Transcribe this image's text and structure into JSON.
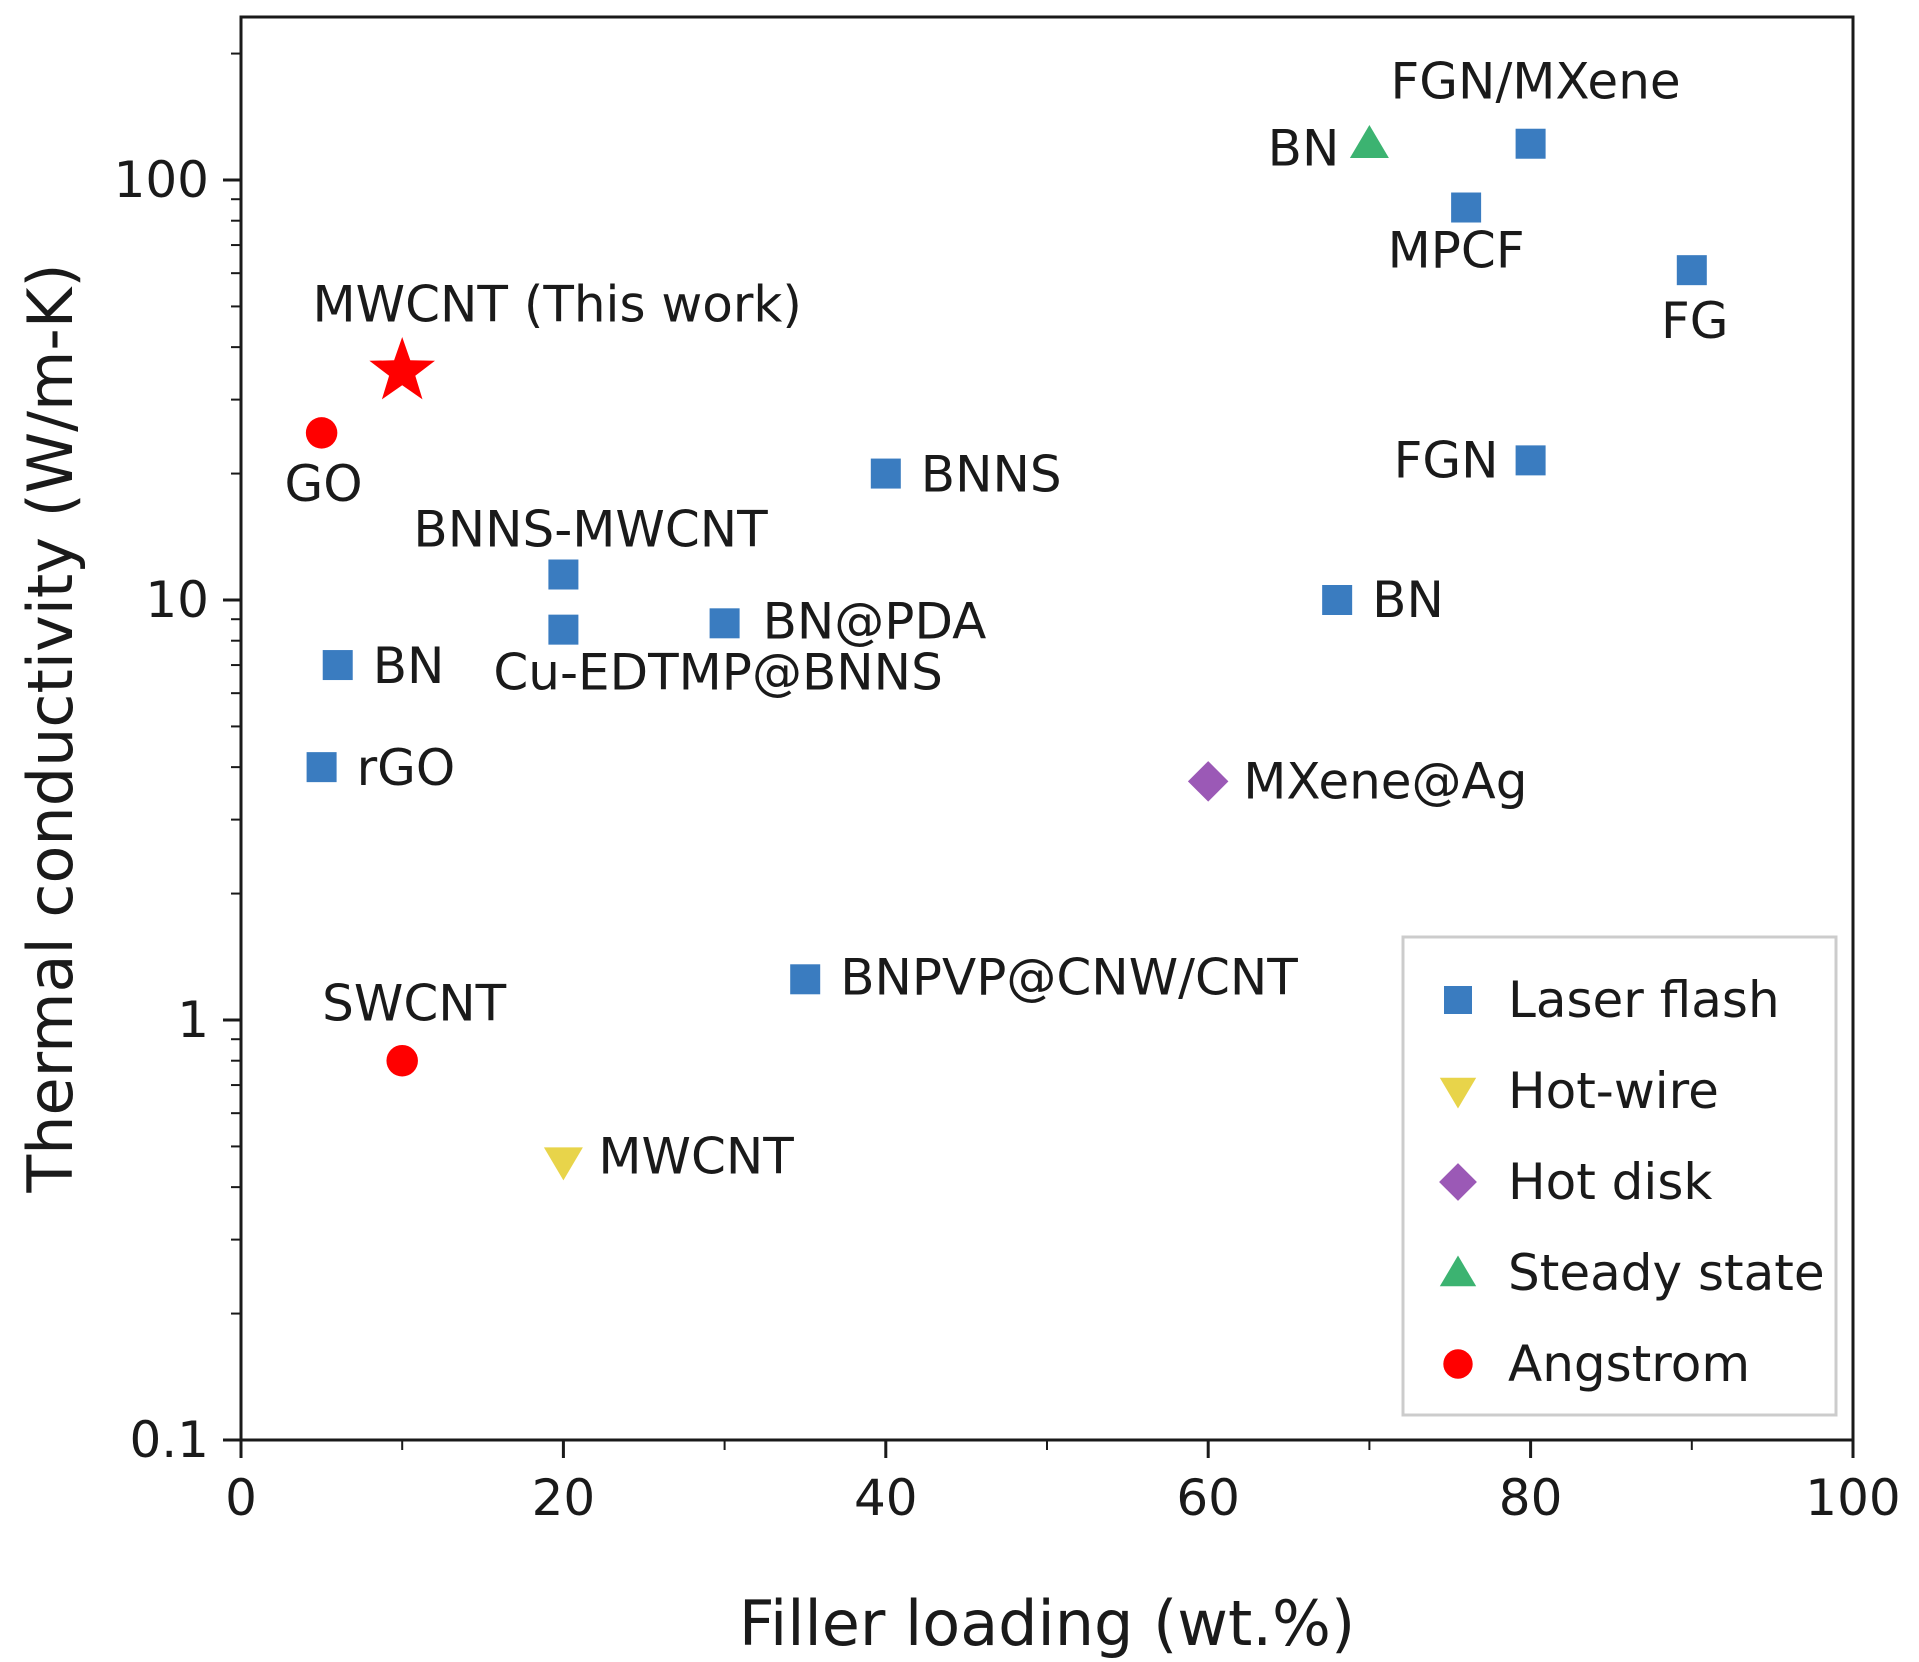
{
  "chart_data": {
    "type": "scatter",
    "title": "",
    "xlabel": "Filler loading (wt.%)",
    "ylabel": "Thermal conductivity (W/m-K)",
    "xlim": [
      0,
      100
    ],
    "ylim": [
      0.1,
      250
    ],
    "yscale": "log",
    "xticks": [
      0,
      20,
      40,
      60,
      80,
      100
    ],
    "xtick_labels": [
      "0",
      "20",
      "40",
      "60",
      "80",
      "100"
    ],
    "yticks": [
      0.1,
      1,
      10,
      100
    ],
    "ytick_labels": [
      "0.1",
      "1",
      "10",
      "100"
    ],
    "grid": false,
    "legend_position": "bottom-right",
    "series": [
      {
        "name": "Laser flash",
        "marker": "square",
        "color": "#3A7CC0",
        "points": [
          {
            "x": 6,
            "y": 7,
            "label": "BN"
          },
          {
            "x": 5,
            "y": 4,
            "label": "rGO"
          },
          {
            "x": 20,
            "y": 11.5,
            "label": "BNNS-MWCNT"
          },
          {
            "x": 20,
            "y": 8.5,
            "label": "Cu-EDTMP@BNNS"
          },
          {
            "x": 30,
            "y": 8.8,
            "label": "BN@PDA"
          },
          {
            "x": 40,
            "y": 20,
            "label": "BNNS"
          },
          {
            "x": 35,
            "y": 1.25,
            "label": "BNPVP@CNW/CNT"
          },
          {
            "x": 68,
            "y": 10,
            "label": "BN"
          },
          {
            "x": 80,
            "y": 21.5,
            "label": "FGN"
          },
          {
            "x": 76,
            "y": 86,
            "label": "MPCF"
          },
          {
            "x": 80,
            "y": 122,
            "label": "FGN/MXene"
          },
          {
            "x": 90,
            "y": 61,
            "label": "FG"
          }
        ]
      },
      {
        "name": "Hot-wire",
        "marker": "triangle-down",
        "color": "#E8D44A",
        "points": [
          {
            "x": 20,
            "y": 0.46,
            "label": "MWCNT"
          }
        ]
      },
      {
        "name": "Hot disk",
        "marker": "diamond",
        "color": "#9B59B6",
        "points": [
          {
            "x": 60,
            "y": 3.7,
            "label": "MXene@Ag"
          }
        ]
      },
      {
        "name": "Steady state",
        "marker": "triangle-up",
        "color": "#3CB371",
        "points": [
          {
            "x": 70,
            "y": 122,
            "label": "BN"
          }
        ]
      },
      {
        "name": "Angstrom",
        "marker": "circle",
        "color": "#FF0000",
        "points": [
          {
            "x": 5,
            "y": 25,
            "label": "GO"
          },
          {
            "x": 10,
            "y": 0.8,
            "label": "SWCNT"
          }
        ]
      },
      {
        "name": "",
        "marker": "star",
        "color": "#FF0000",
        "in_legend": false,
        "points": [
          {
            "x": 10,
            "y": 35,
            "label": "MWCNT (This work)"
          }
        ]
      }
    ]
  }
}
